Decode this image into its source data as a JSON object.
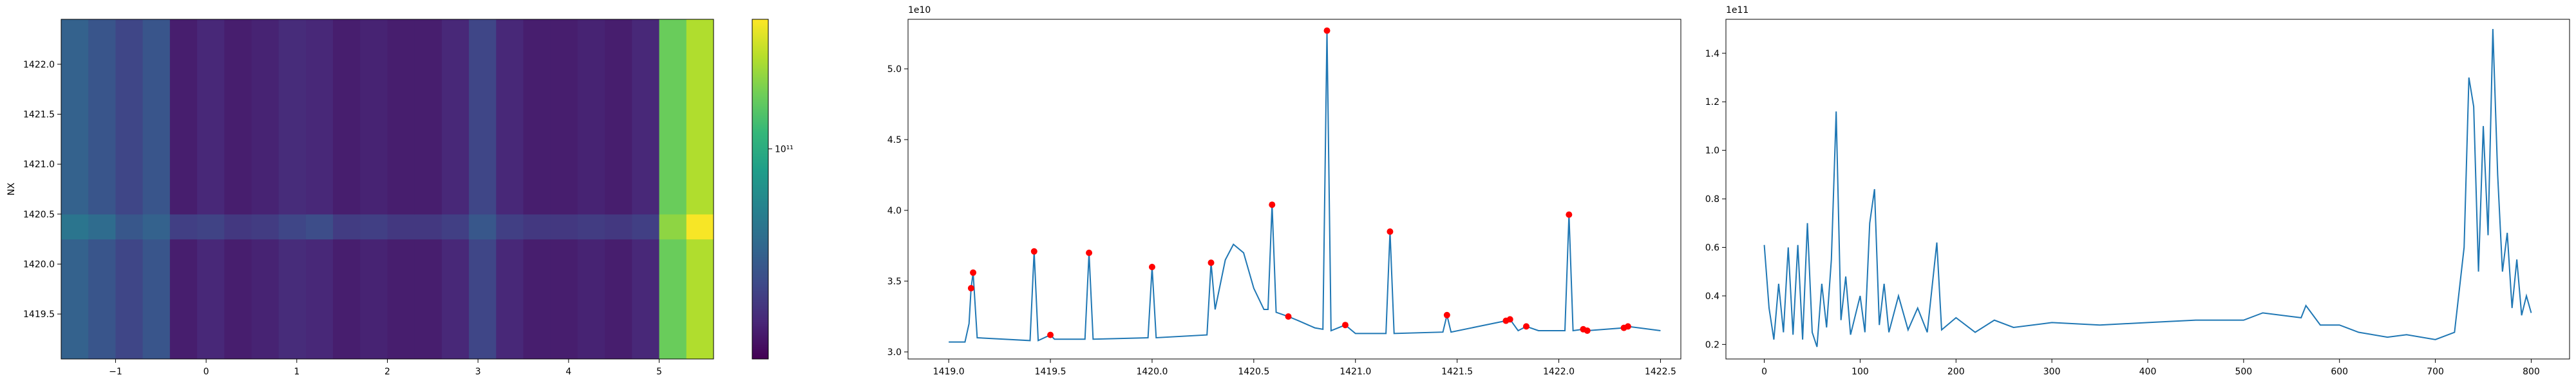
{
  "chart_data": [
    {
      "type": "heatmap",
      "ylabel": "NX",
      "cmap": "viridis",
      "log_color": true,
      "xlim": [
        -1.6,
        5.6
      ],
      "ylim": [
        1419.05,
        1422.45
      ],
      "xticks": [
        {
          "value": -1,
          "label": "−1"
        },
        0,
        1,
        2,
        3,
        4,
        5
      ],
      "yticks": [
        1419.5,
        {
          "value": 1420,
          "label": "1420.0"
        },
        1420.5,
        {
          "value": 1421,
          "label": "1421.0"
        },
        1421.5,
        {
          "value": 1422,
          "label": "1422.0"
        }
      ],
      "x_edges": [
        -1.6,
        -1.3,
        -1.0,
        -0.7,
        -0.4,
        -0.1,
        0.2,
        0.5,
        0.8,
        1.1,
        1.4,
        1.7,
        2.0,
        2.3,
        2.6,
        2.9,
        3.2,
        3.5,
        3.8,
        4.1,
        4.4,
        4.7,
        5.0,
        5.3,
        5.6
      ],
      "y_edges": [
        1419.05,
        1420.25,
        1420.5,
        1422.45
      ],
      "z": [
        [
          50000000000.0,
          45000000000.0,
          40000000000.0,
          45000000000.0,
          30000000000.0,
          32000000000.0,
          30000000000.0,
          31000000000.0,
          33000000000.0,
          32000000000.0,
          30000000000.0,
          31000000000.0,
          30000000000.0,
          30000000000.0,
          32000000000.0,
          40000000000.0,
          32000000000.0,
          30000000000.0,
          30000000000.0,
          31000000000.0,
          30000000000.0,
          32000000000.0,
          140000000000.0,
          180000000000.0
        ],
        [
          60000000000.0,
          55000000000.0,
          46000000000.0,
          50000000000.0,
          38000000000.0,
          39000000000.0,
          36000000000.0,
          37000000000.0,
          40000000000.0,
          42000000000.0,
          37000000000.0,
          38000000000.0,
          36000000000.0,
          36000000000.0,
          38000000000.0,
          46000000000.0,
          38000000000.0,
          36000000000.0,
          36000000000.0,
          37000000000.0,
          36000000000.0,
          38000000000.0,
          160000000000.0,
          230000000000.0
        ],
        [
          50000000000.0,
          45000000000.0,
          40000000000.0,
          45000000000.0,
          30000000000.0,
          32000000000.0,
          30000000000.0,
          31000000000.0,
          33000000000.0,
          32000000000.0,
          30000000000.0,
          31000000000.0,
          30000000000.0,
          30000000000.0,
          32000000000.0,
          40000000000.0,
          32000000000.0,
          30000000000.0,
          30000000000.0,
          31000000000.0,
          30000000000.0,
          32000000000.0,
          140000000000.0,
          180000000000.0
        ]
      ],
      "clim": [
        25000000000.0,
        235000000000.0
      ],
      "cticks": [
        {
          "value": 100000000000,
          "label": "10¹¹"
        }
      ]
    },
    {
      "type": "line",
      "offset_label": "1e10",
      "color": "#1f77b4",
      "xlim": [
        1418.8,
        1422.6
      ],
      "ylim": [
        2.95,
        5.35
      ],
      "xticks": [
        {
          "value": 1419,
          "label": "1419.0"
        },
        1419.5,
        {
          "value": 1420,
          "label": "1420.0"
        },
        1420.5,
        {
          "value": 1421,
          "label": "1421.0"
        },
        1421.5,
        {
          "value": 1422,
          "label": "1422.0"
        },
        1422.5
      ],
      "yticks": [
        {
          "value": 3,
          "label": "3.0"
        },
        3.5,
        {
          "value": 4,
          "label": "4.0"
        },
        4.5,
        {
          "value": 5,
          "label": "5.0"
        }
      ],
      "x": [
        1419.0,
        1419.08,
        1419.1,
        1419.11,
        1419.12,
        1419.14,
        1419.4,
        1419.42,
        1419.44,
        1419.5,
        1419.52,
        1419.67,
        1419.69,
        1419.71,
        1419.98,
        1420.0,
        1420.02,
        1420.27,
        1420.29,
        1420.31,
        1420.36,
        1420.4,
        1420.45,
        1420.5,
        1420.55,
        1420.57,
        1420.59,
        1420.61,
        1420.67,
        1420.72,
        1420.8,
        1420.84,
        1420.86,
        1420.88,
        1420.95,
        1421.0,
        1421.15,
        1421.17,
        1421.19,
        1421.43,
        1421.45,
        1421.47,
        1421.74,
        1421.76,
        1421.8,
        1421.84,
        1421.9,
        1422.03,
        1422.05,
        1422.07,
        1422.12,
        1422.14,
        1422.32,
        1422.34,
        1422.5
      ],
      "values": [
        3.07,
        3.07,
        3.2,
        3.45,
        3.56,
        3.1,
        3.08,
        3.71,
        3.08,
        3.12,
        3.09,
        3.09,
        3.7,
        3.09,
        3.1,
        3.6,
        3.1,
        3.12,
        3.63,
        3.3,
        3.65,
        3.76,
        3.7,
        3.45,
        3.3,
        3.3,
        4.04,
        3.28,
        3.25,
        3.22,
        3.17,
        3.16,
        5.27,
        3.15,
        3.19,
        3.13,
        3.13,
        3.85,
        3.13,
        3.14,
        3.26,
        3.14,
        3.22,
        3.23,
        3.15,
        3.18,
        3.15,
        3.15,
        3.97,
        3.15,
        3.16,
        3.15,
        3.17,
        3.18,
        3.15
      ],
      "markers": {
        "color": "red",
        "x": [
          1419.11,
          1419.12,
          1419.42,
          1419.5,
          1419.69,
          1420.0,
          1420.29,
          1420.59,
          1420.67,
          1420.86,
          1420.95,
          1421.17,
          1421.45,
          1421.74,
          1421.76,
          1421.84,
          1422.05,
          1422.12,
          1422.14,
          1422.32,
          1422.34
        ],
        "y": [
          3.45,
          3.56,
          3.71,
          3.12,
          3.7,
          3.6,
          3.63,
          4.04,
          3.25,
          5.27,
          3.19,
          3.85,
          3.26,
          3.22,
          3.23,
          3.18,
          3.97,
          3.16,
          3.15,
          3.17,
          3.18
        ]
      }
    },
    {
      "type": "line",
      "offset_label": "1e11",
      "color": "#1f77b4",
      "xlim": [
        -40,
        840
      ],
      "ylim": [
        0.14,
        1.54
      ],
      "xticks": [
        0,
        100,
        200,
        300,
        400,
        500,
        600,
        700,
        800
      ],
      "yticks": [
        0.2,
        0.4,
        0.6,
        0.8,
        {
          "value": 1,
          "label": "1.0"
        },
        1.2,
        1.4
      ],
      "x": [
        0,
        5,
        10,
        15,
        20,
        25,
        30,
        35,
        40,
        45,
        50,
        55,
        60,
        65,
        70,
        75,
        80,
        85,
        90,
        100,
        105,
        110,
        115,
        120,
        125,
        130,
        140,
        150,
        160,
        170,
        180,
        185,
        200,
        220,
        240,
        260,
        300,
        350,
        400,
        450,
        500,
        520,
        560,
        565,
        580,
        600,
        620,
        650,
        670,
        700,
        720,
        730,
        735,
        740,
        745,
        750,
        755,
        760,
        765,
        770,
        775,
        780,
        785,
        790,
        795,
        800
      ],
      "values": [
        0.61,
        0.35,
        0.22,
        0.45,
        0.25,
        0.6,
        0.24,
        0.61,
        0.22,
        0.7,
        0.25,
        0.19,
        0.45,
        0.27,
        0.55,
        1.16,
        0.3,
        0.48,
        0.24,
        0.4,
        0.25,
        0.7,
        0.84,
        0.28,
        0.45,
        0.25,
        0.4,
        0.26,
        0.35,
        0.25,
        0.62,
        0.26,
        0.31,
        0.25,
        0.3,
        0.27,
        0.29,
        0.28,
        0.29,
        0.3,
        0.3,
        0.33,
        0.31,
        0.36,
        0.28,
        0.28,
        0.25,
        0.23,
        0.24,
        0.22,
        0.25,
        0.6,
        1.3,
        1.18,
        0.5,
        1.1,
        0.65,
        1.5,
        0.9,
        0.5,
        0.66,
        0.35,
        0.55,
        0.32,
        0.4,
        0.33
      ]
    }
  ]
}
